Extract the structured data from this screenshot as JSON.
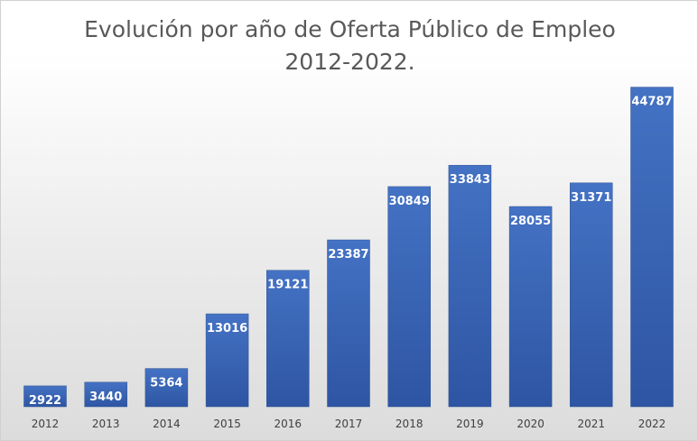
{
  "chart_data": {
    "type": "bar",
    "title": "Evolución por año de Oferta Público de Empleo",
    "subtitle": "2012-2022.",
    "categories": [
      "2012",
      "2013",
      "2014",
      "2015",
      "2016",
      "2017",
      "2018",
      "2019",
      "2020",
      "2021",
      "2022"
    ],
    "values": [
      2922,
      3440,
      5364,
      13016,
      19121,
      23387,
      30849,
      33843,
      28055,
      31371,
      44787
    ],
    "xlabel": "",
    "ylabel": "",
    "ylim": [
      0,
      45500
    ],
    "grid": false,
    "legend": "none",
    "bar_color": "#4472c4",
    "bar_color_dark": "#2e55a3",
    "label_color": "#ffffff"
  }
}
